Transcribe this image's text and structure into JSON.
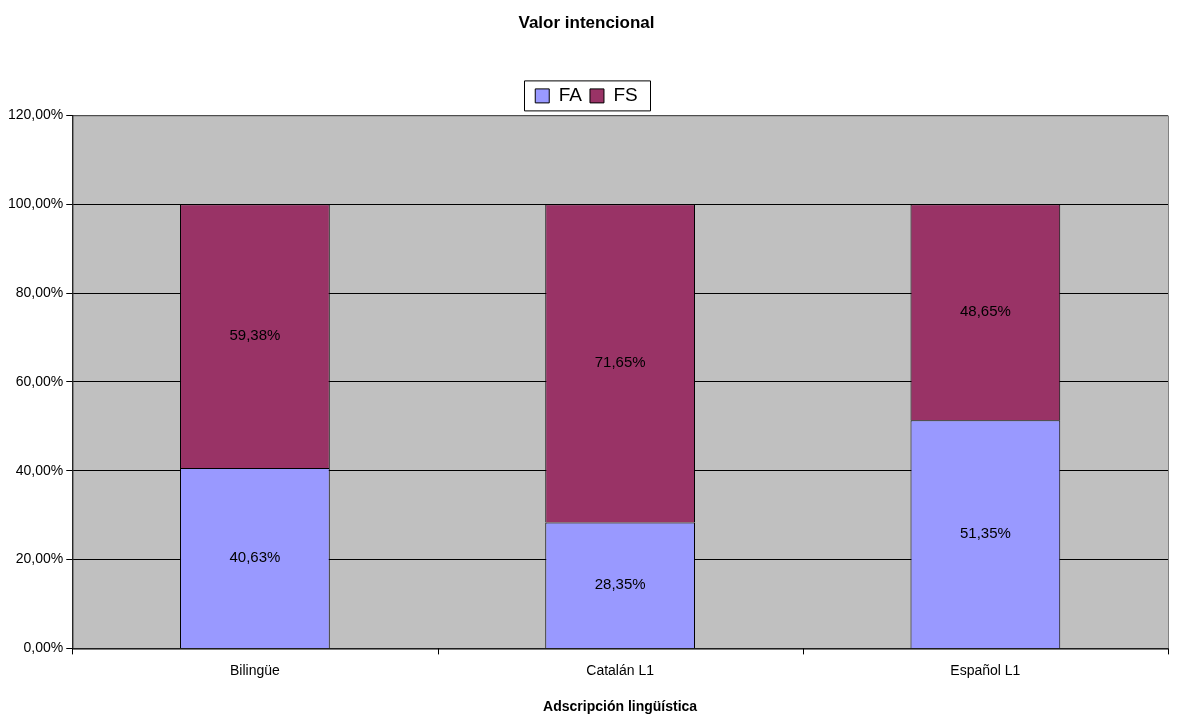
{
  "chart_data": {
    "type": "bar",
    "title": "Valor intencional",
    "xlabel": "Adscripción lingüística",
    "categories": [
      "Bilingüe",
      "Catalán L1",
      "Español L1"
    ],
    "stacked": true,
    "series": [
      {
        "name": "FA",
        "color": "#9999ff",
        "values": [
          40.63,
          28.35,
          51.35
        ],
        "value_labels": [
          "40,63%",
          "28,35%",
          "51,35%"
        ]
      },
      {
        "name": "FS",
        "color": "#993366",
        "values": [
          59.38,
          71.65,
          48.65
        ],
        "value_labels": [
          "59,38%",
          "71,65%",
          "48,65%"
        ]
      }
    ],
    "ylim": [
      0,
      120
    ],
    "yticks": [
      {
        "value": 0,
        "label": "0,00%"
      },
      {
        "value": 20,
        "label": "20,00%"
      },
      {
        "value": 40,
        "label": "40,00%"
      },
      {
        "value": 60,
        "label": "60,00%"
      },
      {
        "value": 80,
        "label": "80,00%"
      },
      {
        "value": 100,
        "label": "100,00%"
      },
      {
        "value": 120,
        "label": "120,00%"
      }
    ],
    "grid": "y",
    "legend": "top"
  }
}
